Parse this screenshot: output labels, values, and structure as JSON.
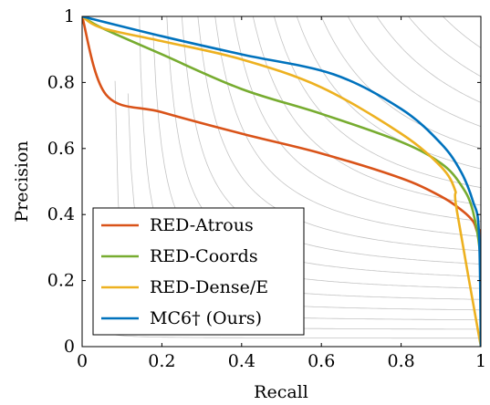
{
  "chart_data": {
    "type": "line",
    "title": "",
    "xlabel": "Recall",
    "ylabel": "Precision",
    "xlim": [
      0,
      1
    ],
    "ylim": [
      0,
      1
    ],
    "xticks": [
      "0",
      "0.2",
      "0.4",
      "0.6",
      "0.8",
      "1"
    ],
    "yticks": [
      "0",
      "0.2",
      "0.4",
      "0.6",
      "0.8",
      "1"
    ],
    "grid": false,
    "background_curves": "iso-F-measure contours",
    "legend_position": "bottom-left",
    "series": [
      {
        "name": "RED-Atrous",
        "color": "#d95319",
        "x": [
          0,
          0.06,
          0.2,
          0.4,
          0.6,
          0.8,
          0.9,
          0.95,
          0.98,
          0.99,
          1.0,
          1.0
        ],
        "y": [
          1.0,
          0.763,
          0.71,
          0.645,
          0.585,
          0.51,
          0.455,
          0.415,
          0.38,
          0.35,
          0.32,
          0.0
        ]
      },
      {
        "name": "RED-Coords",
        "color": "#77ac30",
        "x": [
          0,
          0.05,
          0.2,
          0.4,
          0.6,
          0.8,
          0.9,
          0.95,
          0.98,
          1.0,
          1.0
        ],
        "y": [
          1.0,
          0.965,
          0.885,
          0.78,
          0.705,
          0.62,
          0.555,
          0.49,
          0.41,
          0.25,
          0.0
        ]
      },
      {
        "name": "RED-Dense/E",
        "color": "#edb120",
        "x": [
          0,
          0.05,
          0.2,
          0.4,
          0.6,
          0.8,
          0.9,
          0.935,
          0.94,
          1.0
        ],
        "y": [
          1.0,
          0.965,
          0.925,
          0.87,
          0.785,
          0.645,
          0.545,
          0.475,
          0.41,
          0.0
        ]
      },
      {
        "name": "MC6† (Ours)",
        "color": "#0072bd",
        "x": [
          0,
          0.2,
          0.4,
          0.63,
          0.8,
          0.9,
          0.95,
          0.98,
          0.995,
          1.0
        ],
        "y": [
          1.0,
          0.94,
          0.885,
          0.825,
          0.72,
          0.615,
          0.53,
          0.44,
          0.35,
          0.0
        ]
      }
    ]
  }
}
